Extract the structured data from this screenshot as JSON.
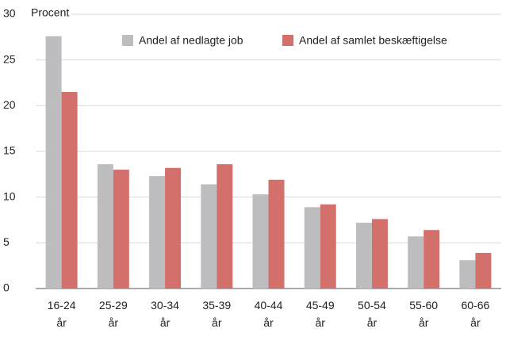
{
  "chart_data": {
    "type": "bar",
    "y_label": "Procent",
    "categories": [
      "16-24 år",
      "25-29 år",
      "30-34 år",
      "35-39 år",
      "40-44 år",
      "45-49 år",
      "50-54 år",
      "55-60 år",
      "60-66 år"
    ],
    "series": [
      {
        "name": "Andel af nedlagte job",
        "color": "#bdbdbf",
        "values": [
          27.6,
          13.6,
          12.3,
          11.4,
          10.3,
          8.9,
          7.2,
          5.7,
          3.1
        ]
      },
      {
        "name": "Andel af samlet beskæftigelse",
        "color": "#d4706c",
        "values": [
          21.5,
          13.0,
          13.2,
          13.6,
          11.9,
          9.2,
          7.6,
          6.4,
          3.9
        ]
      }
    ],
    "ylim": [
      0,
      30
    ],
    "yticks": [
      0,
      5,
      10,
      15,
      20,
      25,
      30
    ],
    "grid": true
  }
}
